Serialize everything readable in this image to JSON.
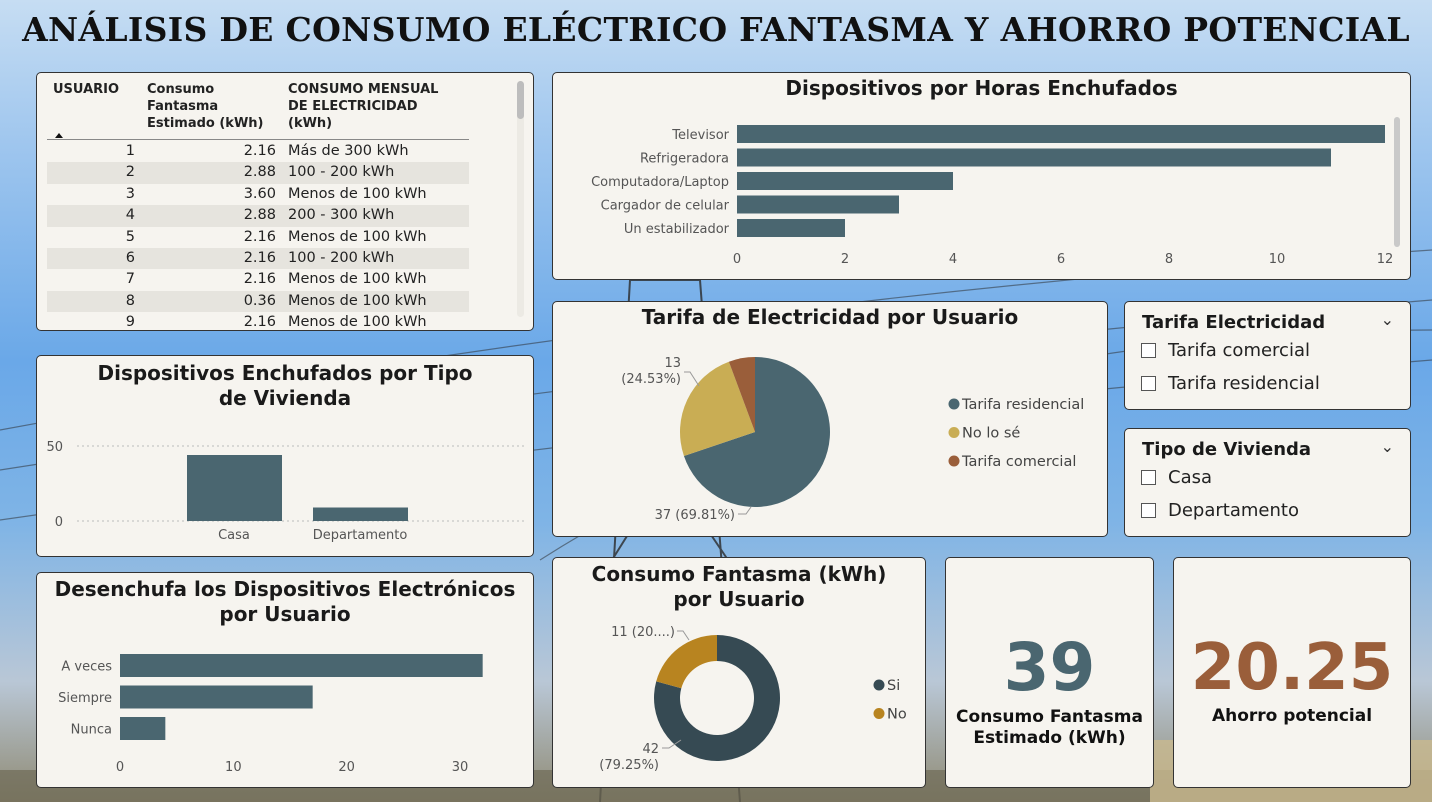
{
  "page": {
    "title": "ANÁLISIS DE CONSUMO ELÉCTRICO FANTASMA Y AHORRO POTENCIAL"
  },
  "colors": {
    "slate": "#4a6670",
    "dark": "#364a53",
    "gold": "#c9ad54",
    "brown": "#9a5e3a",
    "orange": "#b88420"
  },
  "table": {
    "headers": [
      "USUARIO",
      "Consumo Fantasma Estimado (kWh)",
      "CONSUMO MENSUAL DE ELECTRICIDAD (kWh)"
    ],
    "rows": [
      [
        "1",
        "2.16",
        "Más de 300 kWh"
      ],
      [
        "2",
        "2.88",
        "100 - 200 kWh"
      ],
      [
        "3",
        "3.60",
        "Menos de 100 kWh"
      ],
      [
        "4",
        "2.88",
        "200 - 300 kWh"
      ],
      [
        "5",
        "2.16",
        "Menos de 100 kWh"
      ],
      [
        "6",
        "2.16",
        "100 - 200 kWh"
      ],
      [
        "7",
        "2.16",
        "Menos de 100 kWh"
      ],
      [
        "8",
        "0.36",
        "Menos de 100 kWh"
      ],
      [
        "9",
        "2.16",
        "Menos de 100 kWh"
      ]
    ]
  },
  "chart_data": [
    {
      "id": "horas",
      "type": "bar",
      "orientation": "horizontal",
      "title": "Dispositivos por Horas Enchufados",
      "categories": [
        "Televisor",
        "Refrigeradora",
        "Computadora/Laptop",
        "Cargador de celular",
        "Un estabilizador"
      ],
      "values": [
        12,
        11,
        4,
        3,
        2
      ],
      "xlim": [
        0,
        12
      ],
      "ticks": [
        "0",
        "2",
        "4",
        "6",
        "8",
        "10",
        "12"
      ]
    },
    {
      "id": "vivienda",
      "type": "bar",
      "title": "Dispositivos Enchufados por Tipo de Vivienda",
      "categories": [
        "Casa",
        "Departamento"
      ],
      "values": [
        44,
        9
      ],
      "ylim": [
        0,
        58
      ],
      "ticks": [
        "50",
        "0"
      ],
      "grid": true
    },
    {
      "id": "desenchufa",
      "type": "bar",
      "orientation": "horizontal",
      "title": "Desenchufa los Dispositivos Electrónicos por Usuario",
      "categories": [
        "A veces",
        "Siempre",
        "Nunca"
      ],
      "values": [
        32,
        17,
        4
      ],
      "xlim": [
        0,
        33
      ],
      "ticks": [
        "0",
        "10",
        "20",
        "30"
      ]
    },
    {
      "id": "tarifa",
      "type": "pie",
      "title": "Tarifa de Electricidad por Usuario",
      "slices": [
        {
          "label": "Tarifa residencial",
          "value": 37,
          "percent": "69.81%"
        },
        {
          "label": "No lo sé",
          "value": 13,
          "percent": "24.53%"
        },
        {
          "label": "Tarifa comercial",
          "value": 3,
          "percent": "5.66%"
        }
      ],
      "data_labels": [
        "13",
        "(24.53%)",
        "37 (69.81%)"
      ],
      "legend": [
        "Tarifa residencial",
        "No lo sé",
        "Tarifa comercial"
      ]
    },
    {
      "id": "fantasma",
      "type": "pie",
      "donut": true,
      "title": "Consumo Fantasma (kWh) por Usuario",
      "slices": [
        {
          "label": "Si",
          "value": 42,
          "percent": "79.25%"
        },
        {
          "label": "No",
          "value": 11,
          "percent": "20.75%"
        }
      ],
      "data_labels": [
        "11 (20....)",
        "42",
        "(79.25%)"
      ],
      "legend": [
        "Si",
        "No"
      ]
    }
  ],
  "slicers": {
    "tarifa": {
      "title": "Tarifa Electricidad",
      "options": [
        "Tarifa comercial",
        "Tarifa residencial"
      ]
    },
    "vivienda": {
      "title": "Tipo de Vivienda",
      "options": [
        "Casa",
        "Departamento"
      ]
    }
  },
  "kpi": {
    "consumo": {
      "value": "39",
      "label": "Consumo Fantasma Estimado (kWh)"
    },
    "ahorro": {
      "value": "20.25",
      "label": "Ahorro potencial"
    }
  }
}
